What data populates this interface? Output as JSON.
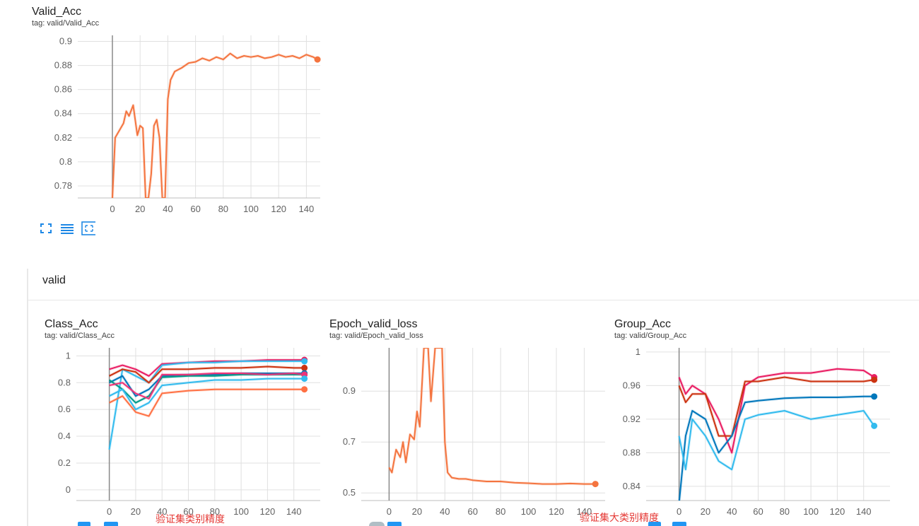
{
  "top_card": {
    "title": "Valid_Acc",
    "tag": "tag: valid/Valid_Acc"
  },
  "section": {
    "title": "valid"
  },
  "cards": [
    {
      "title": "Class_Acc",
      "tag": "tag: valid/Class_Acc"
    },
    {
      "title": "Epoch_valid_loss",
      "tag": "tag: valid/Epoch_valid_loss"
    },
    {
      "title": "Group_Acc",
      "tag": "tag: valid/Group_Acc"
    }
  ],
  "annotations": {
    "class_note": "验证集类别精度",
    "group_note": "验证集大类别精度"
  },
  "icons": [
    "fullscreen-icon",
    "list-icon",
    "fit-domain-icon"
  ],
  "chart_data": [
    {
      "type": "line",
      "title": "Valid_Acc",
      "xlim": [
        -25,
        150
      ],
      "ylim": [
        0.77,
        0.905
      ],
      "x_ticks": [
        0,
        20,
        40,
        60,
        80,
        100,
        120,
        140
      ],
      "y_ticks": [
        0.78,
        0.8,
        0.82,
        0.84,
        0.86,
        0.88,
        0.9
      ],
      "series": [
        {
          "color": "#f4743f",
          "x": [
            0,
            2,
            5,
            8,
            10,
            12,
            15,
            18,
            20,
            22,
            24,
            26,
            28,
            30,
            32,
            34,
            36,
            38,
            40,
            42,
            45,
            50,
            55,
            60,
            65,
            70,
            75,
            80,
            85,
            90,
            95,
            100,
            105,
            110,
            115,
            120,
            125,
            130,
            135,
            140,
            145,
            148
          ],
          "y": [
            0.77,
            0.82,
            0.826,
            0.832,
            0.842,
            0.838,
            0.847,
            0.822,
            0.83,
            0.828,
            0.77,
            0.77,
            0.79,
            0.83,
            0.835,
            0.82,
            0.77,
            0.77,
            0.852,
            0.868,
            0.875,
            0.878,
            0.882,
            0.883,
            0.886,
            0.884,
            0.887,
            0.885,
            0.89,
            0.886,
            0.888,
            0.887,
            0.888,
            0.886,
            0.887,
            0.889,
            0.887,
            0.888,
            0.886,
            0.889,
            0.887,
            0.885
          ]
        }
      ]
    },
    {
      "type": "line",
      "title": "Class_Acc",
      "xlim": [
        -25,
        160
      ],
      "ylim": [
        -0.08,
        1.06
      ],
      "x_ticks": [
        0,
        20,
        40,
        60,
        80,
        100,
        120,
        140
      ],
      "y_ticks": [
        0,
        0.2,
        0.4,
        0.6,
        0.8,
        1
      ],
      "series": [
        {
          "color": "#e91e63",
          "x": [
            0,
            10,
            20,
            30,
            40,
            60,
            80,
            100,
            120,
            140,
            148
          ],
          "y": [
            0.9,
            0.93,
            0.9,
            0.85,
            0.94,
            0.95,
            0.96,
            0.96,
            0.97,
            0.97,
            0.97
          ]
        },
        {
          "color": "#33bbee",
          "x": [
            0,
            10,
            20,
            30,
            40,
            60,
            80,
            100,
            120,
            140,
            148
          ],
          "y": [
            0.3,
            0.9,
            0.85,
            0.8,
            0.93,
            0.95,
            0.95,
            0.96,
            0.96,
            0.96,
            0.96
          ]
        },
        {
          "color": "#cc3311",
          "x": [
            0,
            10,
            20,
            30,
            40,
            60,
            80,
            100,
            120,
            140,
            148
          ],
          "y": [
            0.85,
            0.9,
            0.88,
            0.8,
            0.9,
            0.9,
            0.91,
            0.91,
            0.92,
            0.91,
            0.91
          ]
        },
        {
          "color": "#0077bb",
          "x": [
            0,
            10,
            20,
            30,
            40,
            60,
            80,
            100,
            120,
            140,
            148
          ],
          "y": [
            0.8,
            0.85,
            0.7,
            0.75,
            0.85,
            0.86,
            0.86,
            0.87,
            0.87,
            0.87,
            0.87
          ]
        },
        {
          "color": "#009988",
          "x": [
            0,
            10,
            20,
            30,
            40,
            60,
            80,
            100,
            120,
            140,
            148
          ],
          "y": [
            0.82,
            0.75,
            0.65,
            0.7,
            0.84,
            0.85,
            0.85,
            0.86,
            0.86,
            0.86,
            0.86
          ]
        },
        {
          "color": "#ee3377",
          "x": [
            0,
            10,
            20,
            30,
            40,
            60,
            80,
            100,
            120,
            140,
            148
          ],
          "y": [
            0.78,
            0.8,
            0.72,
            0.68,
            0.86,
            0.86,
            0.87,
            0.87,
            0.86,
            0.87,
            0.86
          ]
        },
        {
          "color": "#33bbee",
          "x": [
            0,
            10,
            20,
            30,
            40,
            60,
            80,
            100,
            120,
            140,
            148
          ],
          "y": [
            0.7,
            0.75,
            0.6,
            0.65,
            0.78,
            0.8,
            0.82,
            0.82,
            0.83,
            0.83,
            0.83
          ]
        },
        {
          "color": "#ff7043",
          "x": [
            0,
            10,
            20,
            30,
            40,
            60,
            80,
            100,
            120,
            140,
            148
          ],
          "y": [
            0.65,
            0.7,
            0.58,
            0.55,
            0.72,
            0.74,
            0.75,
            0.75,
            0.75,
            0.75,
            0.75
          ]
        }
      ]
    },
    {
      "type": "line",
      "title": "Epoch_valid_loss",
      "xlim": [
        -20,
        155
      ],
      "ylim": [
        0.47,
        1.07
      ],
      "x_ticks": [
        0,
        20,
        40,
        60,
        80,
        100,
        120,
        140
      ],
      "y_ticks": [
        0.5,
        0.7,
        0.9
      ],
      "series": [
        {
          "color": "#f4743f",
          "x": [
            0,
            2,
            5,
            8,
            10,
            12,
            15,
            18,
            20,
            22,
            25,
            28,
            30,
            33,
            35,
            38,
            40,
            42,
            45,
            50,
            55,
            60,
            70,
            80,
            90,
            100,
            110,
            120,
            130,
            140,
            148
          ],
          "y": [
            0.6,
            0.58,
            0.67,
            0.64,
            0.7,
            0.62,
            0.73,
            0.71,
            0.82,
            0.76,
            1.07,
            1.07,
            0.86,
            1.07,
            1.07,
            1.07,
            0.7,
            0.58,
            0.56,
            0.555,
            0.555,
            0.55,
            0.545,
            0.545,
            0.54,
            0.538,
            0.535,
            0.535,
            0.537,
            0.535,
            0.535
          ]
        }
      ]
    },
    {
      "type": "line",
      "title": "Group_Acc",
      "xlim": [
        -25,
        160
      ],
      "ylim": [
        0.823,
        1.005
      ],
      "x_ticks": [
        0,
        20,
        40,
        60,
        80,
        100,
        120,
        140
      ],
      "y_ticks": [
        0.84,
        0.88,
        0.92,
        0.96,
        1
      ],
      "series": [
        {
          "color": "#e91e63",
          "x": [
            0,
            5,
            10,
            20,
            30,
            40,
            50,
            60,
            80,
            100,
            120,
            140,
            148
          ],
          "y": [
            0.97,
            0.95,
            0.96,
            0.95,
            0.92,
            0.88,
            0.96,
            0.97,
            0.975,
            0.975,
            0.98,
            0.978,
            0.97
          ]
        },
        {
          "color": "#cc3311",
          "x": [
            0,
            5,
            10,
            20,
            30,
            40,
            50,
            60,
            80,
            100,
            120,
            140,
            148
          ],
          "y": [
            0.96,
            0.94,
            0.95,
            0.95,
            0.9,
            0.9,
            0.965,
            0.965,
            0.97,
            0.965,
            0.965,
            0.965,
            0.967
          ]
        },
        {
          "color": "#0077bb",
          "x": [
            0,
            5,
            10,
            20,
            30,
            40,
            50,
            60,
            80,
            100,
            120,
            140,
            148
          ],
          "y": [
            0.82,
            0.9,
            0.93,
            0.92,
            0.88,
            0.9,
            0.94,
            0.942,
            0.945,
            0.946,
            0.946,
            0.947,
            0.947
          ]
        },
        {
          "color": "#33bbee",
          "x": [
            0,
            5,
            10,
            20,
            30,
            40,
            50,
            60,
            80,
            100,
            120,
            140,
            148
          ],
          "y": [
            0.9,
            0.86,
            0.92,
            0.9,
            0.87,
            0.86,
            0.92,
            0.925,
            0.93,
            0.92,
            0.925,
            0.93,
            0.912
          ]
        }
      ]
    }
  ]
}
